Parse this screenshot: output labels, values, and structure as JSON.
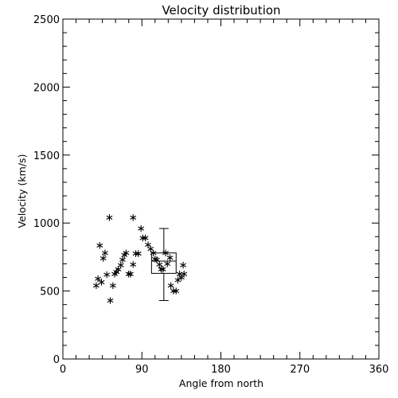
{
  "chart_data": {
    "type": "scatter",
    "title": "Velocity distribution",
    "xlabel": "Angle from north",
    "ylabel": "Velocity (km/s)",
    "xlim": [
      0,
      360
    ],
    "ylim": [
      0,
      2500
    ],
    "xticks": [
      "0",
      "90",
      "180",
      "270",
      "360"
    ],
    "yticks": [
      "0",
      "500",
      "1000",
      "1500",
      "2000",
      "2500"
    ],
    "marker": "asterisk",
    "grid": false,
    "points": [
      [
        38,
        540
      ],
      [
        40,
        590
      ],
      [
        42,
        835
      ],
      [
        44,
        565
      ],
      [
        46,
        740
      ],
      [
        48,
        780
      ],
      [
        50,
        620
      ],
      [
        53,
        1040
      ],
      [
        54,
        430
      ],
      [
        57,
        540
      ],
      [
        59,
        625
      ],
      [
        61,
        640
      ],
      [
        63,
        660
      ],
      [
        66,
        690
      ],
      [
        68,
        730
      ],
      [
        70,
        765
      ],
      [
        72,
        780
      ],
      [
        75,
        625
      ],
      [
        77,
        625
      ],
      [
        80,
        695
      ],
      [
        80,
        1040
      ],
      [
        83,
        775
      ],
      [
        86,
        775
      ],
      [
        89,
        960
      ],
      [
        91,
        890
      ],
      [
        94,
        890
      ],
      [
        97,
        840
      ],
      [
        100,
        810
      ],
      [
        103,
        780
      ],
      [
        105,
        735
      ],
      [
        107,
        730
      ],
      [
        110,
        695
      ],
      [
        112,
        660
      ],
      [
        114,
        660
      ],
      [
        117,
        780
      ],
      [
        119,
        700
      ],
      [
        122,
        745
      ],
      [
        123,
        540
      ],
      [
        126,
        500
      ],
      [
        129,
        500
      ],
      [
        131,
        580
      ],
      [
        133,
        625
      ],
      [
        135,
        600
      ],
      [
        137,
        690
      ],
      [
        138,
        625
      ]
    ],
    "boxplot": {
      "x_min": 101,
      "x_max": 129,
      "x_center": 115,
      "q1": 630,
      "median": 720,
      "q3": 780,
      "whisker_low": 430,
      "whisker_high": 960
    }
  }
}
